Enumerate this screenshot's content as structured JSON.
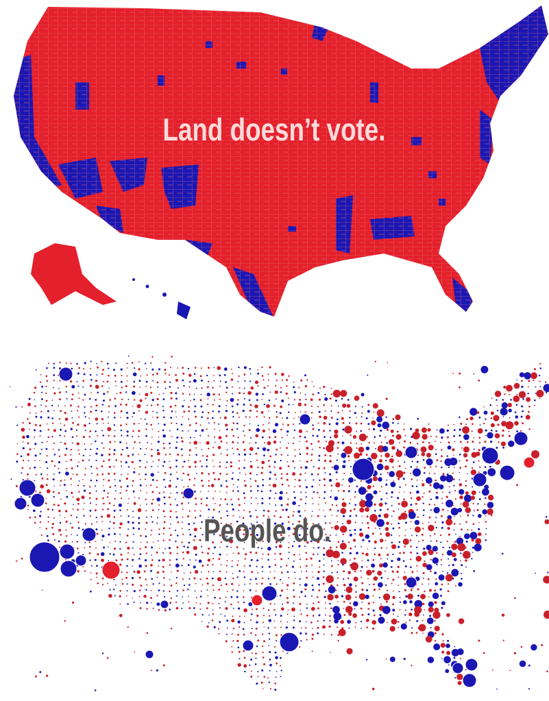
{
  "top_caption": "Land doesn’t vote.",
  "bottom_caption": "People do."
}
